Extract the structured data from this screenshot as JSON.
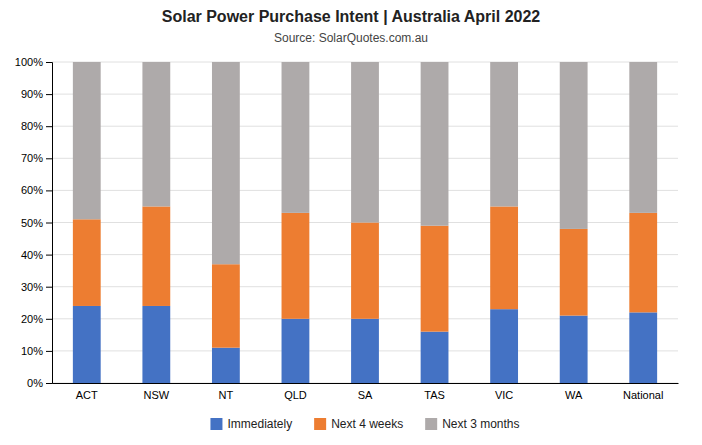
{
  "chart_data": {
    "type": "bar",
    "stacked": true,
    "title": "Solar Power Purchase Intent | Australia April 2022",
    "subtitle": "Source: SolarQuotes.com.au",
    "categories": [
      "ACT",
      "NSW",
      "NT",
      "QLD",
      "SA",
      "TAS",
      "VIC",
      "WA",
      "National"
    ],
    "series": [
      {
        "name": "Immediately",
        "color": "#4472C4",
        "values": [
          24,
          24,
          11,
          20,
          20,
          16,
          23,
          21,
          22
        ]
      },
      {
        "name": "Next 4 weeks",
        "color": "#ED7D31",
        "values": [
          27,
          31,
          26,
          33,
          30,
          33,
          32,
          27,
          31
        ]
      },
      {
        "name": "Next 3 months",
        "color": "#AEAAAA",
        "values": [
          49,
          45,
          63,
          47,
          50,
          51,
          45,
          52,
          47
        ]
      }
    ],
    "ylim": [
      0,
      100
    ],
    "yticks": [
      {
        "value": 0,
        "label": "0%"
      },
      {
        "value": 10,
        "label": "10%"
      },
      {
        "value": 20,
        "label": "20%"
      },
      {
        "value": 30,
        "label": "30%"
      },
      {
        "value": 40,
        "label": "40%"
      },
      {
        "value": 50,
        "label": "50%"
      },
      {
        "value": 60,
        "label": "60%"
      },
      {
        "value": 70,
        "label": "70%"
      },
      {
        "value": 80,
        "label": "80%"
      },
      {
        "value": 90,
        "label": "90%"
      },
      {
        "value": 100,
        "label": "100%"
      }
    ],
    "grid": true,
    "legend": "bottom"
  }
}
